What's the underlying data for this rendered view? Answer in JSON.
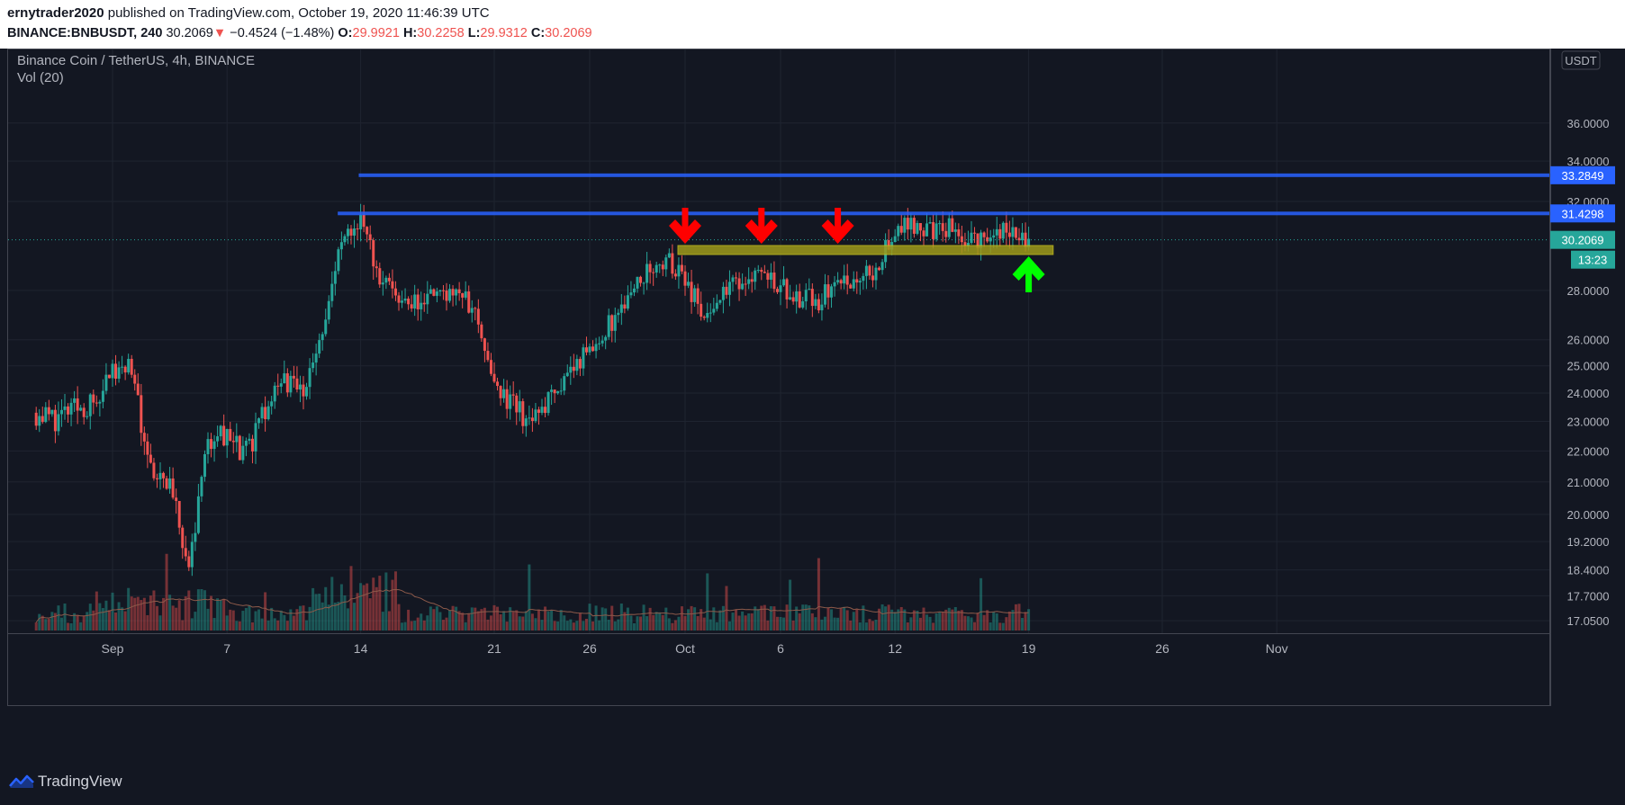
{
  "header": {
    "author": "ernytrader2020",
    "published_text": "published on TradingView.com, October 19, 2020 11:46:39 UTC",
    "symbol": "BINANCE:BNBUSDT, 240",
    "last": "30.2069",
    "change": "−0.4524 (−1.48%)",
    "o_label": "O:",
    "o_value": "29.9921",
    "h_label": "H:",
    "h_value": "30.2258",
    "l_label": "L:",
    "l_value": "29.9312",
    "c_label": "C:",
    "c_value": "30.2069"
  },
  "chart_title": "Binance Coin / TetherUS, 4h, BINANCE",
  "vol_label": "Vol (20)",
  "currency_badge": "USDT",
  "countdown": "13:23",
  "footer_brand": "TradingView",
  "colors": {
    "background": "#131722",
    "up": "#26a69a",
    "down": "#ef5350",
    "resistance": "#2962ff",
    "support_zone": "#9e9a1a",
    "arrow_down": "#ff0000",
    "arrow_up": "#00ff00"
  },
  "chart_data": {
    "type": "candlestick",
    "y_scale": "log",
    "y_ticks": [
      "17.0500",
      "17.7000",
      "18.4000",
      "19.2000",
      "20.0000",
      "21.0000",
      "22.0000",
      "23.0000",
      "24.0000",
      "25.0000",
      "26.0000",
      "28.0000",
      "32.0000",
      "34.0000",
      "36.0000"
    ],
    "x_ticks": [
      "Sep",
      "7",
      "14",
      "21",
      "26",
      "Oct",
      "6",
      "12",
      "19",
      "26",
      "Nov"
    ],
    "price_labels": [
      {
        "label": "33.2849",
        "value": 33.2849,
        "kind": "resistance"
      },
      {
        "label": "31.4298",
        "value": 31.4298,
        "kind": "resistance"
      },
      {
        "label": "30.2069",
        "value": 30.2069,
        "kind": "last"
      }
    ],
    "support_zone": {
      "from": "2020-10-01",
      "to": "2020-10-20",
      "low": 29.55,
      "high": 29.95
    },
    "arrows": [
      {
        "direction": "down",
        "date": "2020-10-01"
      },
      {
        "direction": "down",
        "date": "2020-10-05"
      },
      {
        "direction": "down",
        "date": "2020-10-09"
      },
      {
        "direction": "up",
        "date": "2020-10-19"
      }
    ],
    "daily_closes": [
      {
        "date": "2020-08-28",
        "close": 23.3
      },
      {
        "date": "2020-08-29",
        "close": 23.1
      },
      {
        "date": "2020-08-30",
        "close": 23.4
      },
      {
        "date": "2020-08-31",
        "close": 23.6
      },
      {
        "date": "2020-09-01",
        "close": 24.8
      },
      {
        "date": "2020-09-02",
        "close": 24.9
      },
      {
        "date": "2020-09-03",
        "close": 21.2
      },
      {
        "date": "2020-09-04",
        "close": 20.7
      },
      {
        "date": "2020-09-05",
        "close": 18.5
      },
      {
        "date": "2020-09-06",
        "close": 22.4
      },
      {
        "date": "2020-09-07",
        "close": 22.6
      },
      {
        "date": "2020-09-08",
        "close": 21.9
      },
      {
        "date": "2020-09-09",
        "close": 23.3
      },
      {
        "date": "2020-09-10",
        "close": 24.4
      },
      {
        "date": "2020-09-11",
        "close": 24.0
      },
      {
        "date": "2020-09-12",
        "close": 26.5
      },
      {
        "date": "2020-09-13",
        "close": 30.0
      },
      {
        "date": "2020-09-14",
        "close": 31.2
      },
      {
        "date": "2020-09-15",
        "close": 28.5
      },
      {
        "date": "2020-09-16",
        "close": 27.8
      },
      {
        "date": "2020-09-17",
        "close": 27.5
      },
      {
        "date": "2020-09-18",
        "close": 28.0
      },
      {
        "date": "2020-09-19",
        "close": 27.9
      },
      {
        "date": "2020-09-20",
        "close": 27.3
      },
      {
        "date": "2020-09-21",
        "close": 24.0
      },
      {
        "date": "2020-09-22",
        "close": 23.5
      },
      {
        "date": "2020-09-23",
        "close": 22.8
      },
      {
        "date": "2020-09-24",
        "close": 24.0
      },
      {
        "date": "2020-09-25",
        "close": 24.8
      },
      {
        "date": "2020-09-26",
        "close": 25.6
      },
      {
        "date": "2020-09-27",
        "close": 26.6
      },
      {
        "date": "2020-09-28",
        "close": 27.6
      },
      {
        "date": "2020-09-29",
        "close": 28.8
      },
      {
        "date": "2020-09-30",
        "close": 29.4
      },
      {
        "date": "2020-10-01",
        "close": 28.3
      },
      {
        "date": "2020-10-02",
        "close": 27.0
      },
      {
        "date": "2020-10-03",
        "close": 27.9
      },
      {
        "date": "2020-10-04",
        "close": 28.5
      },
      {
        "date": "2020-10-05",
        "close": 28.9
      },
      {
        "date": "2020-10-06",
        "close": 28.2
      },
      {
        "date": "2020-10-07",
        "close": 27.7
      },
      {
        "date": "2020-10-08",
        "close": 27.6
      },
      {
        "date": "2020-10-09",
        "close": 28.3
      },
      {
        "date": "2020-10-10",
        "close": 28.6
      },
      {
        "date": "2020-10-11",
        "close": 28.9
      },
      {
        "date": "2020-10-12",
        "close": 30.7
      },
      {
        "date": "2020-10-13",
        "close": 30.9
      },
      {
        "date": "2020-10-14",
        "close": 30.6
      },
      {
        "date": "2020-10-15",
        "close": 30.8
      },
      {
        "date": "2020-10-16",
        "close": 30.1
      },
      {
        "date": "2020-10-17",
        "close": 30.3
      },
      {
        "date": "2020-10-18",
        "close": 30.7
      },
      {
        "date": "2020-10-19",
        "close": 30.2
      }
    ]
  }
}
